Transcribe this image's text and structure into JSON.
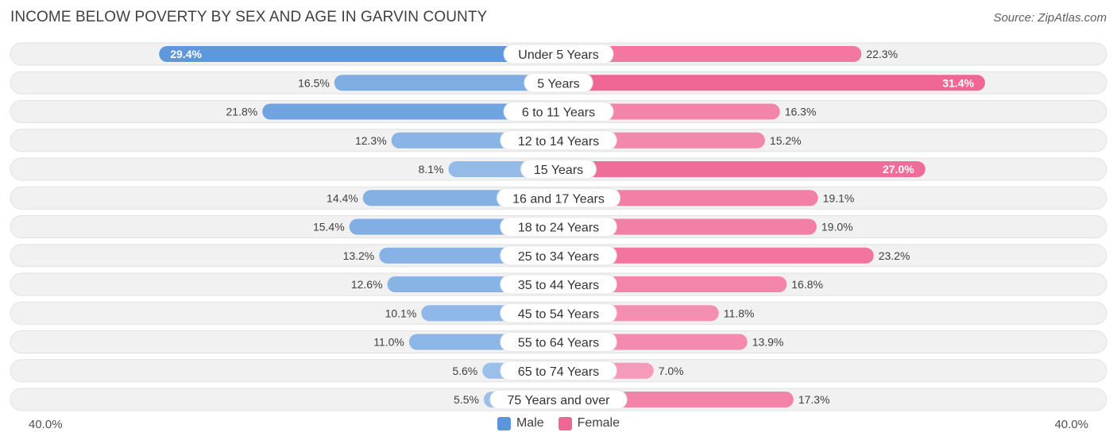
{
  "header": {
    "title": "INCOME BELOW POVERTY BY SEX AND AGE IN GARVIN COUNTY",
    "source": "Source: ZipAtlas.com"
  },
  "axis": {
    "left_label": "40.0%",
    "right_label": "40.0%"
  },
  "legend": {
    "male": "Male",
    "female": "Female"
  },
  "colors": {
    "male_strong": "#5b96dc",
    "male_light": "#a9c8ec",
    "female_strong": "#f06694",
    "female_light": "#f7aac6",
    "track": "#f1f1f1"
  },
  "chart_data": {
    "type": "bar",
    "orientation": "horizontal-diverging",
    "title": "INCOME BELOW POVERTY BY SEX AND AGE IN GARVIN COUNTY",
    "unit": "%",
    "xlim": [
      -40,
      40
    ],
    "categories": [
      "Under 5 Years",
      "5 Years",
      "6 to 11 Years",
      "12 to 14 Years",
      "15 Years",
      "16 and 17 Years",
      "18 to 24 Years",
      "25 to 34 Years",
      "35 to 44 Years",
      "45 to 54 Years",
      "55 to 64 Years",
      "65 to 74 Years",
      "75 Years and over"
    ],
    "series": [
      {
        "name": "Male",
        "values": [
          29.4,
          16.5,
          21.8,
          12.3,
          8.1,
          14.4,
          15.4,
          13.2,
          12.6,
          10.1,
          11.0,
          5.6,
          5.5
        ],
        "labels": [
          "29.4%",
          "16.5%",
          "21.8%",
          "12.3%",
          "8.1%",
          "14.4%",
          "15.4%",
          "13.2%",
          "12.6%",
          "10.1%",
          "11.0%",
          "5.6%",
          "5.5%"
        ]
      },
      {
        "name": "Female",
        "values": [
          22.3,
          31.4,
          16.3,
          15.2,
          27.0,
          19.1,
          19.0,
          23.2,
          16.8,
          11.8,
          13.9,
          7.0,
          17.3
        ],
        "labels": [
          "22.3%",
          "31.4%",
          "16.3%",
          "15.2%",
          "27.0%",
          "19.1%",
          "19.0%",
          "23.2%",
          "16.8%",
          "11.8%",
          "13.9%",
          "7.0%",
          "17.3%"
        ]
      }
    ]
  }
}
